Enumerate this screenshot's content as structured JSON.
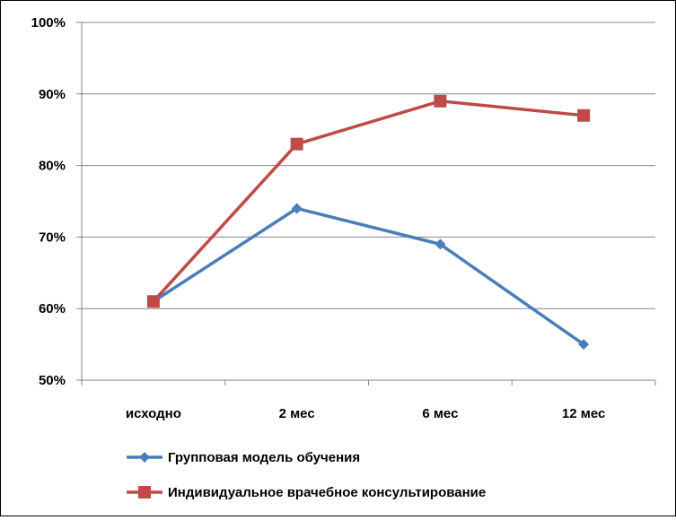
{
  "chart_data": {
    "type": "line",
    "title": "",
    "xlabel": "",
    "ylabel": "",
    "categories": [
      "исходно",
      "2 мес",
      "6 мес",
      "12 мес"
    ],
    "y_ticks": [
      "50%",
      "60%",
      "70%",
      "80%",
      "90%",
      "100%"
    ],
    "ylim": [
      0.5,
      1.0
    ],
    "grid": true,
    "legend_position": "bottom",
    "series": [
      {
        "name": "Групповая модель обучения",
        "values": [
          0.61,
          0.74,
          0.69,
          0.55
        ],
        "color": "#4A7EBB",
        "marker": "diamond"
      },
      {
        "name": "Индивидуальное врачебное консультирование",
        "values": [
          0.61,
          0.83,
          0.89,
          0.87
        ],
        "color": "#BE4B48",
        "marker": "square"
      }
    ]
  }
}
